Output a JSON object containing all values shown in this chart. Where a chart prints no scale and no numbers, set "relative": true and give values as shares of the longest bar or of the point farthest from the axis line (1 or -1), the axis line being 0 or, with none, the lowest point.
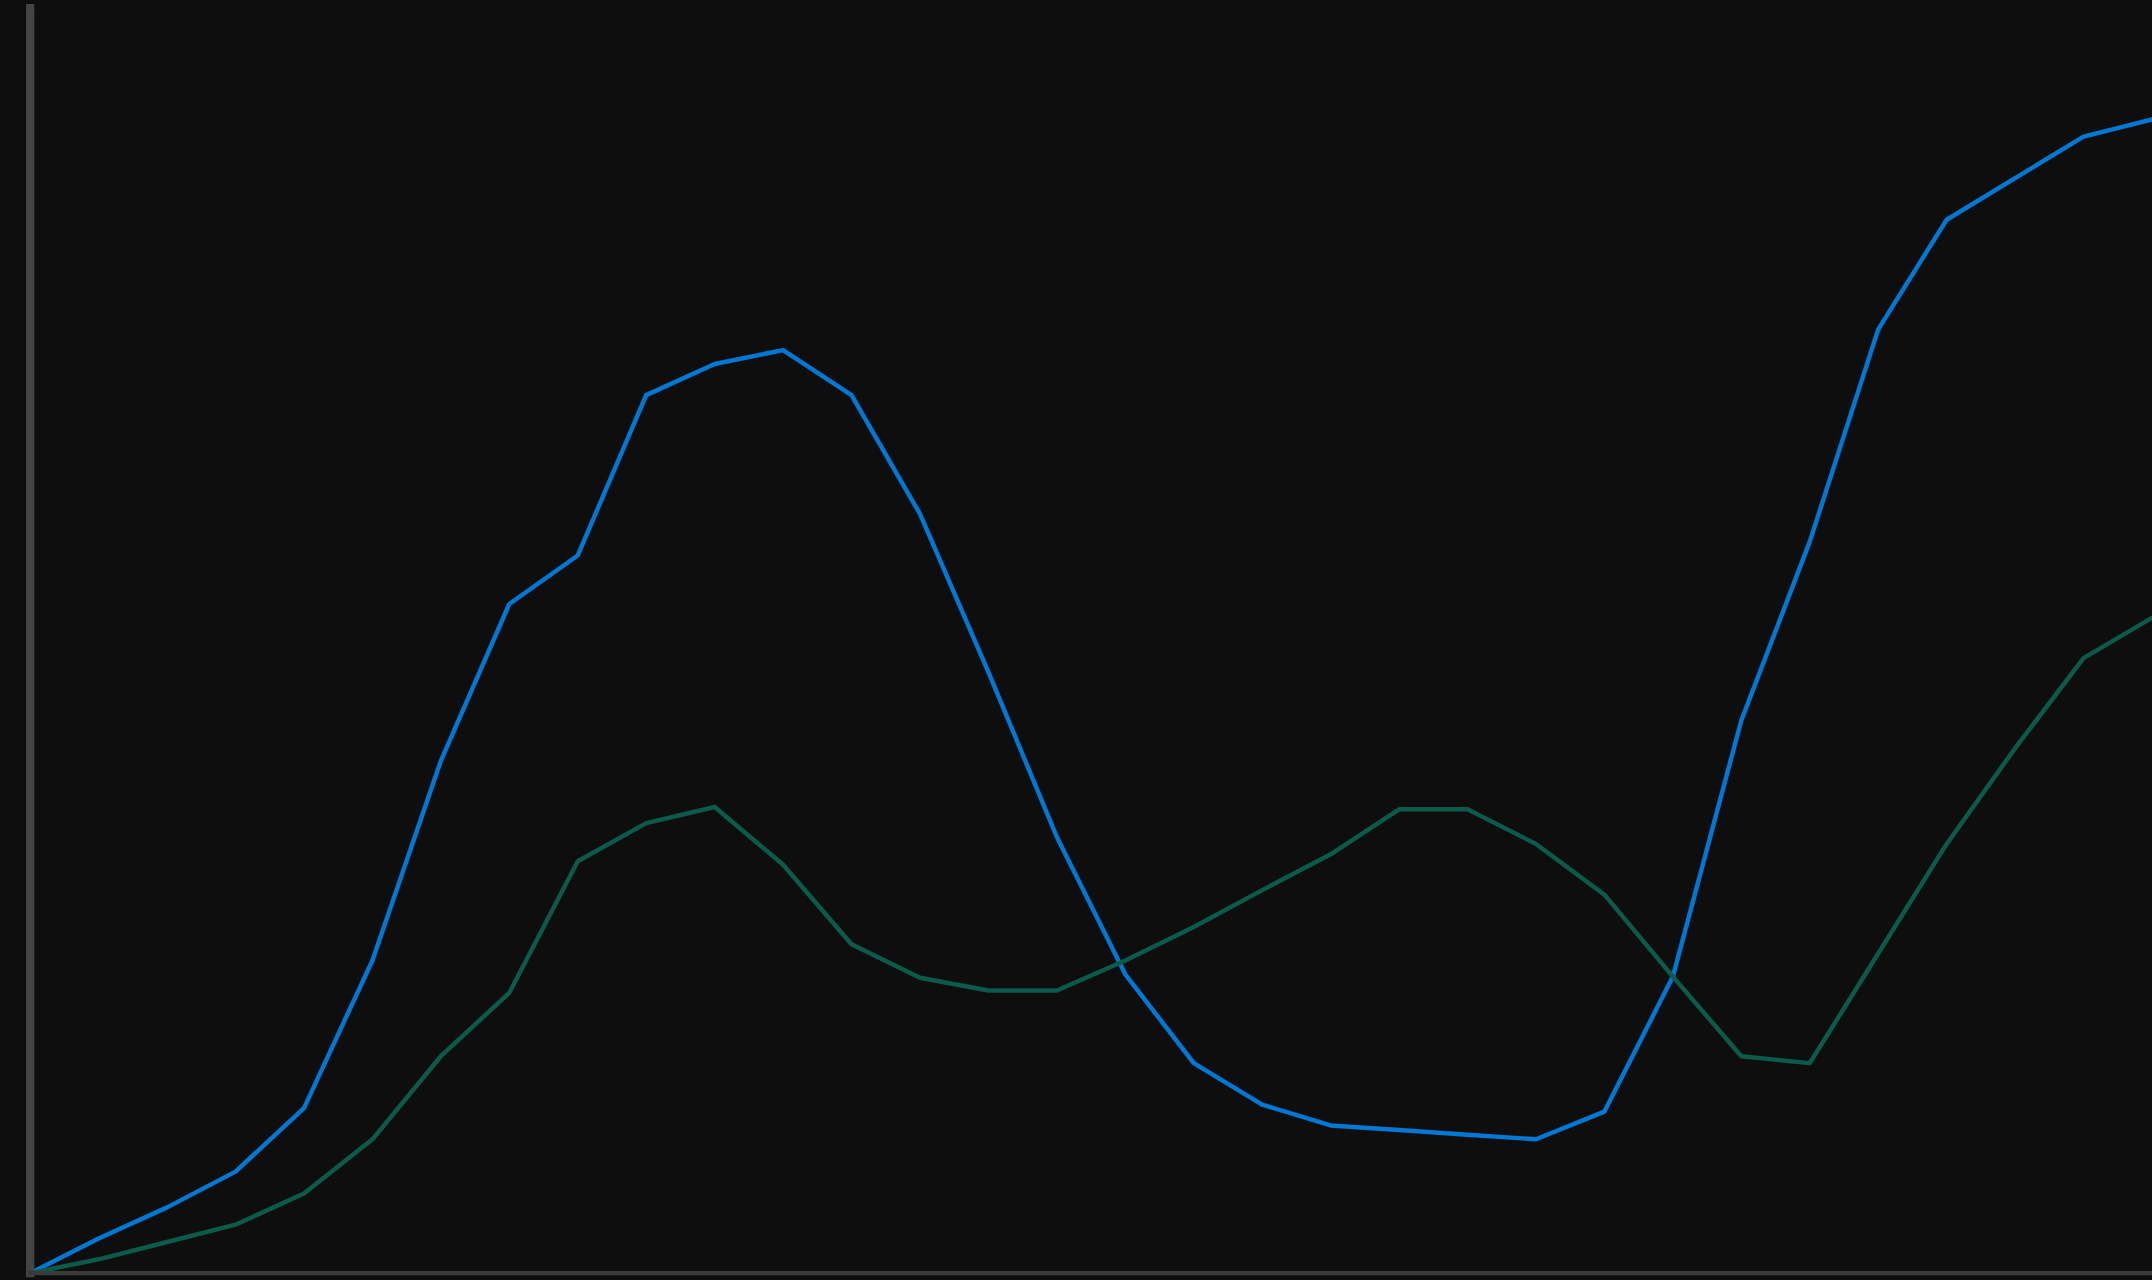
{
  "chart_data": {
    "type": "line",
    "relative": true,
    "marker": "none",
    "line_style": "solid",
    "categories": [
      null,
      null,
      null,
      null,
      null,
      null,
      null,
      null,
      null,
      null,
      null,
      null,
      null,
      null,
      null,
      null,
      null,
      null,
      null,
      null,
      null,
      null,
      null,
      null,
      null,
      null,
      null,
      null,
      null,
      null,
      null,
      null
    ],
    "series": [
      {
        "color": "#0078d4",
        "values": [
          0,
          0.03,
          0.057,
          0.088,
          0.143,
          0.271,
          0.444,
          0.58,
          0.622,
          0.761,
          0.788,
          0.8,
          0.761,
          0.658,
          0.521,
          0.378,
          0.259,
          0.182,
          0.146,
          0.128,
          0.124,
          0.12,
          0.116,
          0.14,
          0.257,
          0.479,
          0.634,
          0.818,
          0.913,
          0.949,
          0.985,
          1
        ]
      },
      {
        "color": "#0b5a4a",
        "values": [
          0,
          0.012,
          0.027,
          0.042,
          0.069,
          0.116,
          0.188,
          0.243,
          0.357,
          0.39,
          0.404,
          0.354,
          0.285,
          0.256,
          0.245,
          0.245,
          0.271,
          0.3,
          0.332,
          0.363,
          0.402,
          0.402,
          0.372,
          0.328,
          0.257,
          0.188,
          0.182,
          0.277,
          0.372,
          0.455,
          0.533,
          0.568
        ]
      }
    ]
  }
}
